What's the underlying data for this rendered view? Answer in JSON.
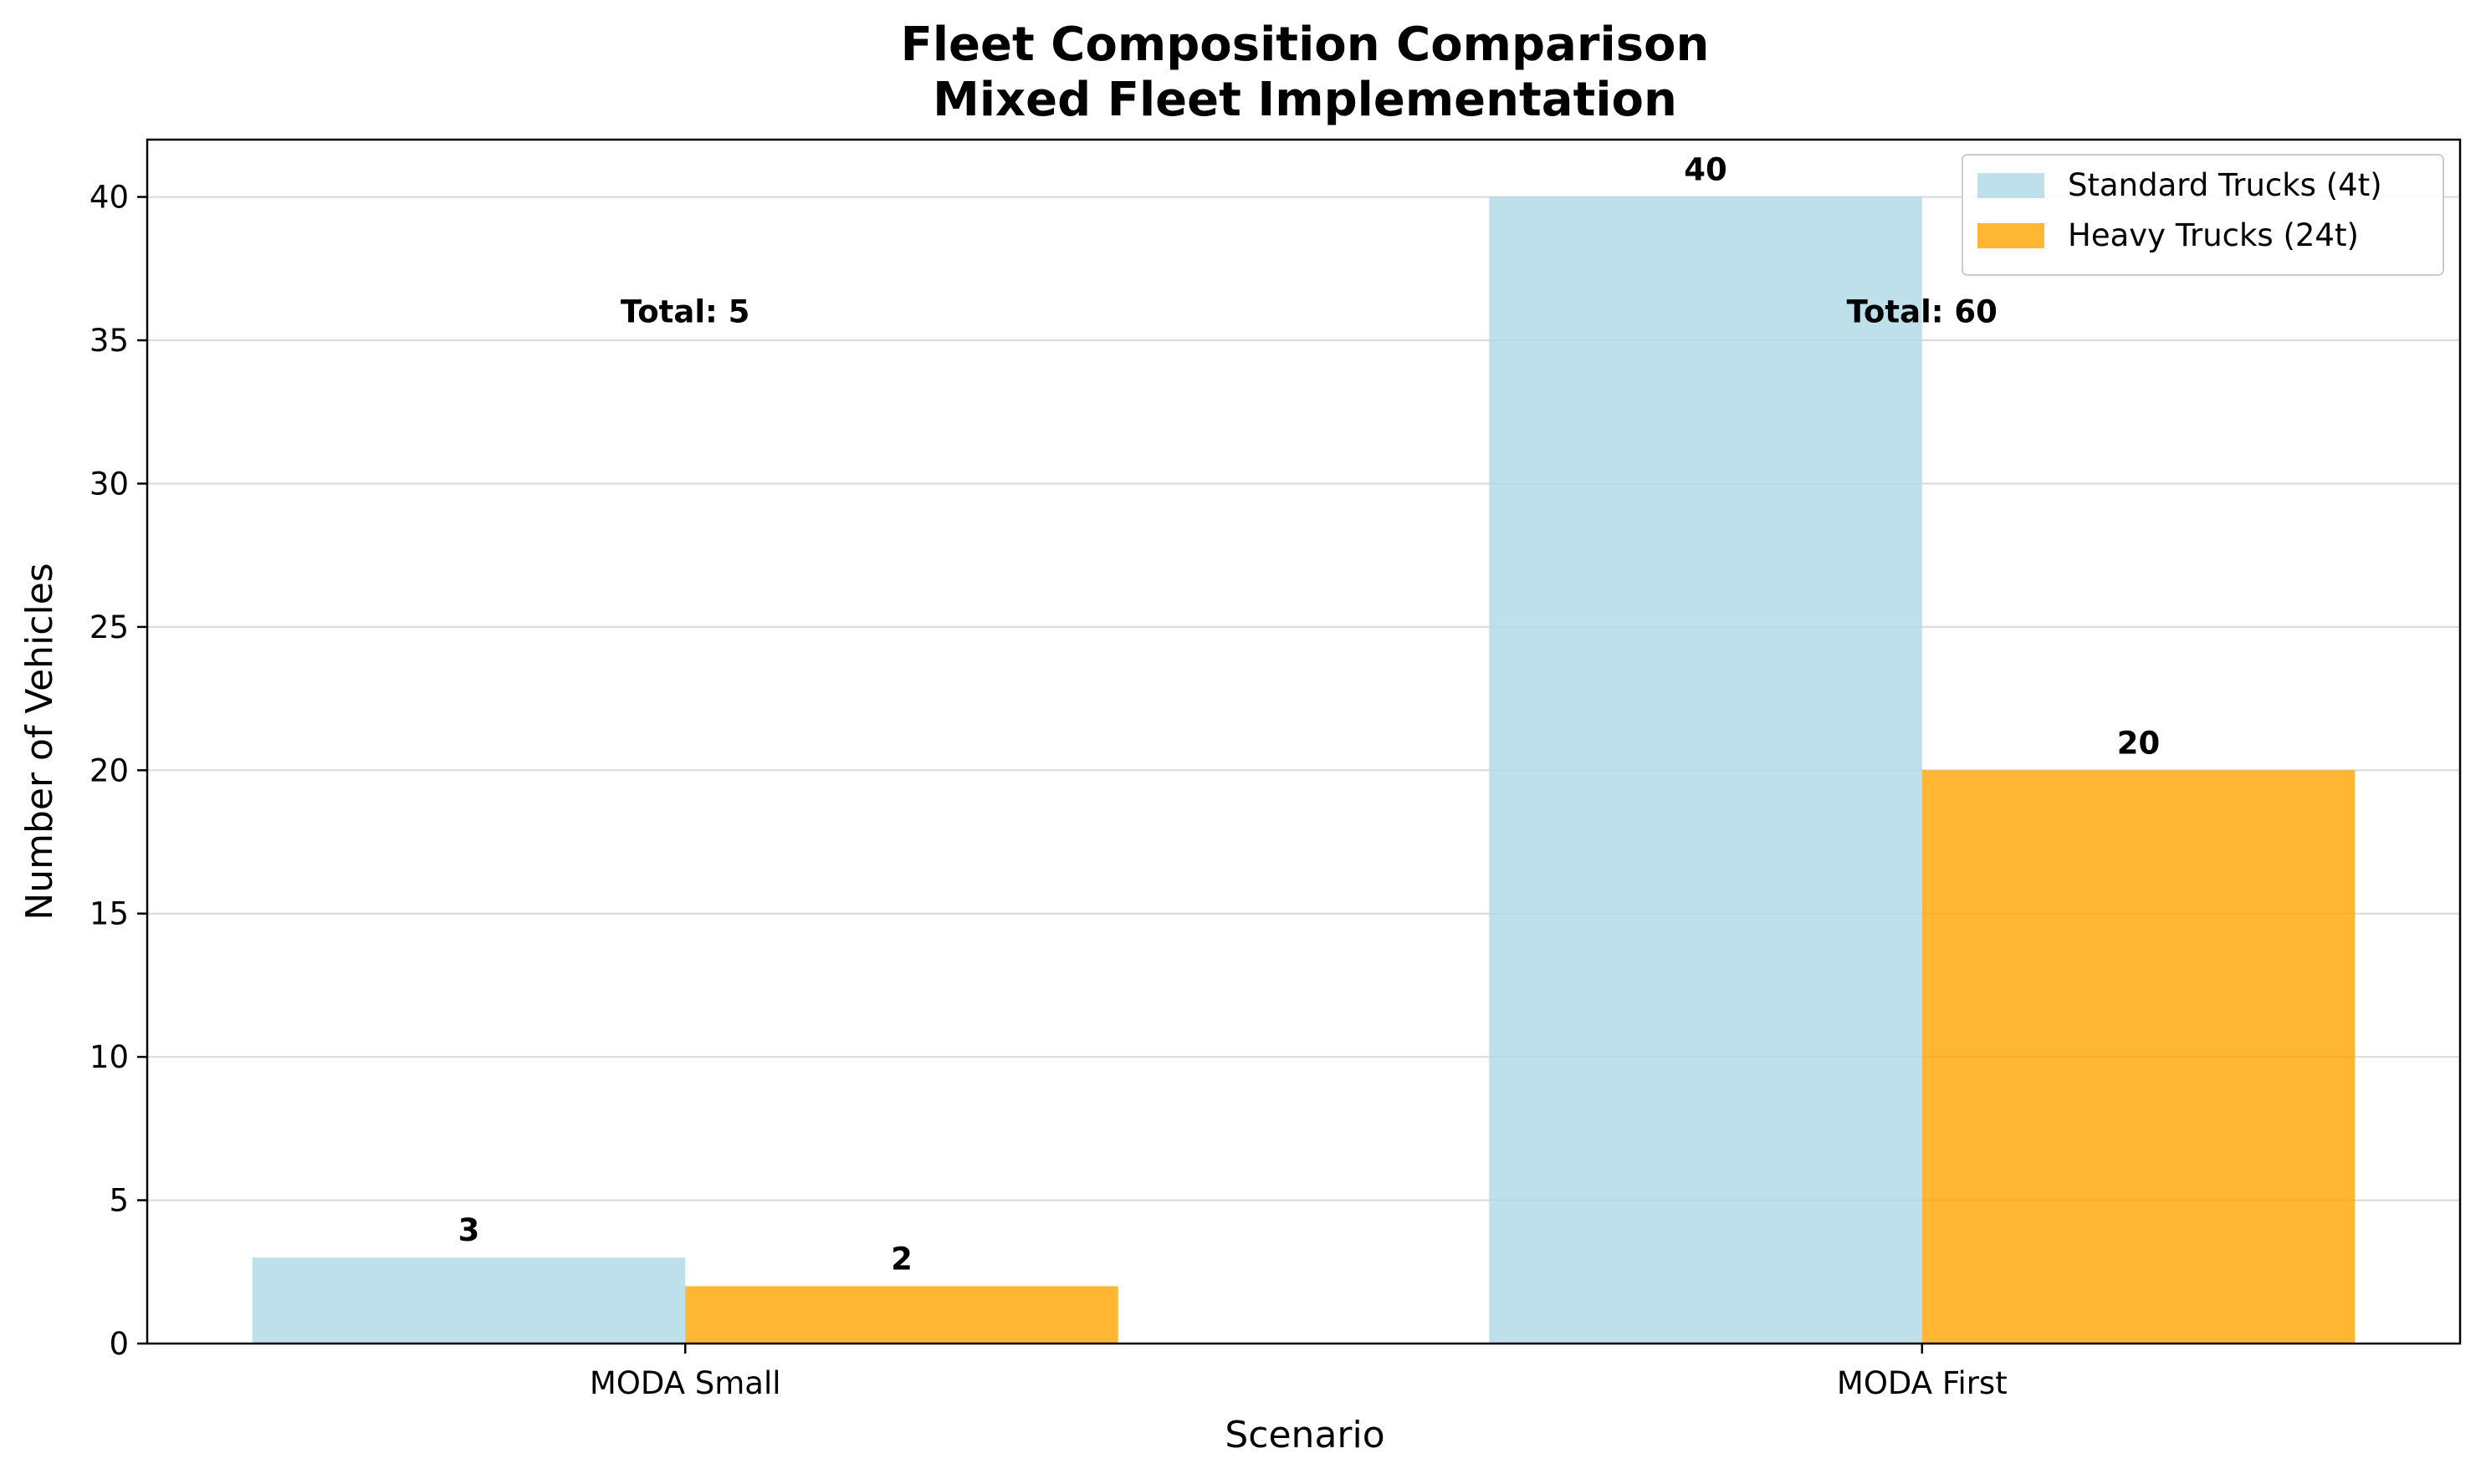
{
  "chart_data": {
    "type": "bar",
    "title": "Fleet Composition Comparison",
    "subtitle": "Mixed Fleet Implementation",
    "xlabel": "Scenario",
    "ylabel": "Number of Vehicles",
    "categories": [
      "MODA Small",
      "MODA First"
    ],
    "series": [
      {
        "name": "Standard Trucks (4t)",
        "values": [
          3,
          40
        ],
        "color": "#ADD8E6"
      },
      {
        "name": "Heavy Trucks (24t)",
        "values": [
          2,
          20
        ],
        "color": "#FFA500"
      }
    ],
    "totals": [
      "Total: 5",
      "Total: 60"
    ],
    "ylim": [
      0,
      42
    ],
    "yticks": [
      0,
      5,
      10,
      15,
      20,
      25,
      30,
      35,
      40
    ],
    "grid": "horizontal",
    "legend_position": "top-right"
  }
}
